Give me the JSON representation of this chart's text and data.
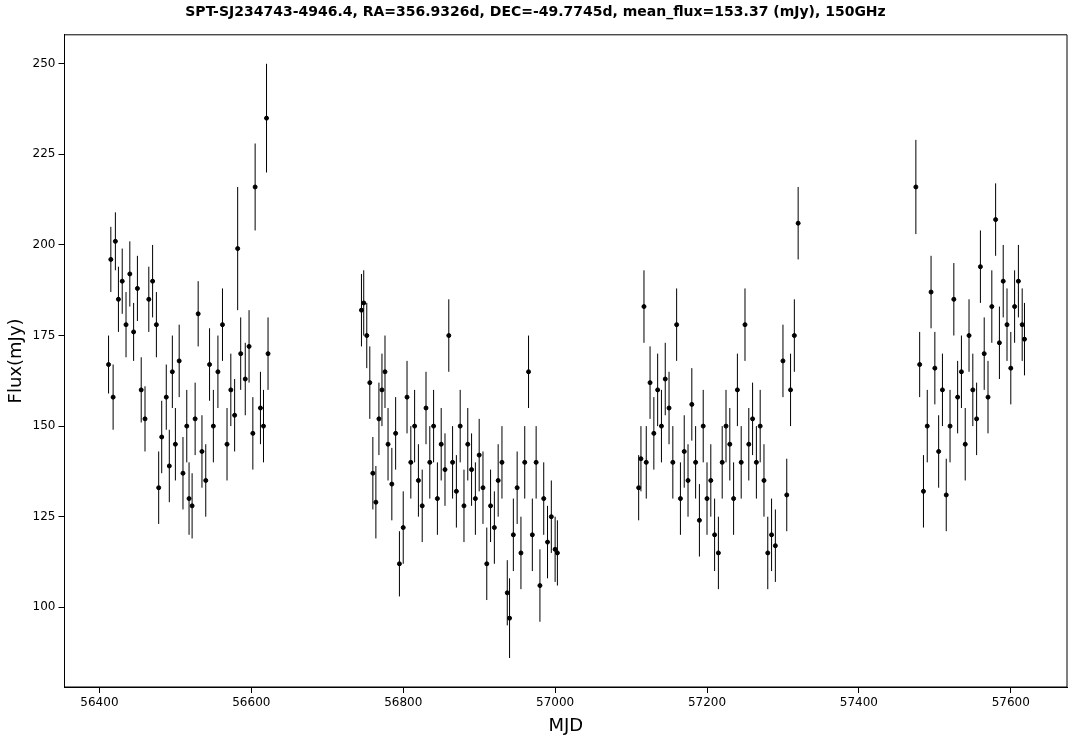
{
  "chart_data": {
    "type": "scatter",
    "title": "SPT-SJ234743-4946.4, RA=356.9326d, DEC=-49.7745d, mean_flux=153.37 (mJy), 150GHz",
    "xlabel": "MJD",
    "ylabel": "Flux(mJy)",
    "xlim": [
      56354,
      57674
    ],
    "ylim": [
      78,
      258
    ],
    "xticks": [
      56400,
      56600,
      56800,
      57000,
      57200,
      57400,
      57600
    ],
    "yticks": [
      100,
      125,
      150,
      175,
      200,
      225,
      250
    ],
    "grid": false,
    "legend": false,
    "marker": "circle",
    "series": [
      {
        "color": "#000000",
        "x": [
          56412,
          56415,
          56418,
          56421,
          56425,
          56430,
          56435,
          56440,
          56445,
          56450,
          56455,
          56460,
          56465,
          56470,
          56475,
          56478,
          56482,
          56488,
          56492,
          56496,
          56500,
          56505,
          56510,
          56515,
          56518,
          56522,
          56526,
          56530,
          56535,
          56540,
          56545,
          56550,
          56556,
          56562,
          56568,
          56573,
          56578,
          56582,
          56586,
          56592,
          56597,
          56602,
          56605,
          56612,
          56616,
          56620,
          56622,
          56745,
          56748,
          56752,
          56756,
          56760,
          56764,
          56768,
          56772,
          56776,
          56780,
          56785,
          56790,
          56795,
          56800,
          56805,
          56810,
          56815,
          56820,
          56825,
          56830,
          56835,
          56840,
          56845,
          56850,
          56855,
          56860,
          56865,
          56870,
          56875,
          56880,
          56885,
          56890,
          56895,
          56900,
          56905,
          56910,
          56915,
          56920,
          56925,
          56930,
          56937,
          56940,
          56945,
          56950,
          56955,
          56960,
          56965,
          56970,
          56975,
          56980,
          56985,
          56990,
          56995,
          57000,
          57003,
          57110,
          57113,
          57117,
          57120,
          57125,
          57130,
          57135,
          57140,
          57145,
          57150,
          57155,
          57160,
          57165,
          57170,
          57175,
          57180,
          57185,
          57190,
          57195,
          57200,
          57205,
          57210,
          57215,
          57220,
          57225,
          57230,
          57235,
          57240,
          57245,
          57250,
          57255,
          57260,
          57265,
          57270,
          57275,
          57280,
          57285,
          57290,
          57300,
          57305,
          57310,
          57315,
          57320,
          57475,
          57480,
          57485,
          57490,
          57495,
          57500,
          57505,
          57510,
          57515,
          57520,
          57525,
          57530,
          57535,
          57540,
          57545,
          57550,
          57555,
          57560,
          57565,
          57570,
          57575,
          57580,
          57585,
          57590,
          57595,
          57600,
          57605,
          57610,
          57615,
          57618
        ],
        "values": [
          167,
          196,
          158,
          201,
          185,
          190,
          178,
          192,
          176,
          188,
          160,
          152,
          185,
          190,
          178,
          133,
          147,
          158,
          139,
          165,
          145,
          168,
          137,
          150,
          130,
          128,
          152,
          181,
          143,
          135,
          167,
          150,
          165,
          178,
          145,
          160,
          153,
          199,
          170,
          163,
          172,
          148,
          216,
          155,
          150,
          235,
          170,
          182,
          184,
          175,
          162,
          137,
          129,
          152,
          160,
          165,
          145,
          134,
          148,
          112,
          122,
          158,
          140,
          150,
          135,
          128,
          155,
          140,
          150,
          130,
          145,
          138,
          175,
          140,
          132,
          150,
          128,
          145,
          138,
          130,
          142,
          133,
          112,
          128,
          122,
          135,
          140,
          104,
          97,
          120,
          133,
          115,
          140,
          165,
          120,
          140,
          106,
          130,
          118,
          125,
          116,
          115,
          133,
          141,
          183,
          140,
          162,
          148,
          160,
          150,
          163,
          155,
          140,
          178,
          130,
          143,
          135,
          156,
          140,
          124,
          150,
          130,
          135,
          120,
          115,
          140,
          150,
          145,
          130,
          160,
          140,
          178,
          145,
          152,
          140,
          150,
          135,
          115,
          120,
          117,
          168,
          131,
          160,
          175,
          206,
          216,
          167,
          132,
          150,
          187,
          166,
          143,
          160,
          131,
          150,
          185,
          158,
          165,
          145,
          175,
          160,
          152,
          194,
          170,
          158,
          183,
          207,
          173,
          190,
          178,
          166,
          183,
          190,
          178,
          174
        ],
        "errors": [
          8,
          9,
          9,
          8,
          9,
          9,
          9,
          9,
          8,
          9,
          9,
          9,
          9,
          10,
          9,
          10,
          10,
          9,
          10,
          10,
          10,
          10,
          10,
          10,
          10,
          9,
          10,
          9,
          10,
          10,
          10,
          10,
          10,
          10,
          10,
          10,
          10,
          17,
          10,
          10,
          10,
          10,
          12,
          10,
          10,
          15,
          10,
          10,
          9,
          9,
          10,
          10,
          10,
          10,
          10,
          10,
          10,
          10,
          10,
          9,
          10,
          10,
          10,
          10,
          10,
          10,
          10,
          10,
          10,
          10,
          10,
          10,
          10,
          10,
          10,
          10,
          10,
          10,
          10,
          10,
          10,
          10,
          10,
          10,
          10,
          10,
          10,
          9,
          11,
          10,
          10,
          10,
          10,
          10,
          10,
          10,
          10,
          10,
          10,
          10,
          9,
          9,
          9,
          9,
          10,
          10,
          10,
          10,
          10,
          10,
          10,
          10,
          10,
          10,
          10,
          10,
          10,
          10,
          10,
          10,
          10,
          10,
          10,
          10,
          10,
          10,
          10,
          10,
          10,
          10,
          10,
          10,
          10,
          10,
          10,
          10,
          10,
          10,
          10,
          10,
          10,
          10,
          10,
          10,
          10,
          13,
          9,
          10,
          10,
          10,
          10,
          10,
          10,
          10,
          10,
          10,
          10,
          10,
          10,
          10,
          10,
          10,
          10,
          10,
          10,
          10,
          10,
          10,
          10,
          10,
          10,
          10,
          10,
          10,
          10
        ]
      }
    ]
  }
}
